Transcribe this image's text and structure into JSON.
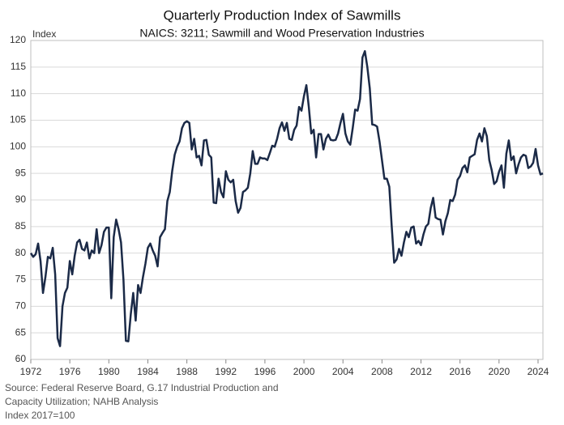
{
  "chart_data": {
    "type": "line",
    "title": "Quarterly Production Index of Sawmills",
    "subtitle": "NAICS: 3211; Sawmill and Wood Preservation Industries",
    "y_axis_label": "Index",
    "notes": [
      "Source: Federal Reserve Board, G.17 Industrial Production and",
      "Capacity Utilization; NAHB Analysis",
      "Index 2017=100"
    ],
    "x": [
      1972,
      1972.25,
      1972.5,
      1972.75,
      1973,
      1973.25,
      1973.5,
      1973.75,
      1974,
      1974.25,
      1974.5,
      1974.75,
      1975,
      1975.25,
      1975.5,
      1975.75,
      1976,
      1976.25,
      1976.5,
      1976.75,
      1977,
      1977.25,
      1977.5,
      1977.75,
      1978,
      1978.25,
      1978.5,
      1978.75,
      1979,
      1979.25,
      1979.5,
      1979.75,
      1980,
      1980.25,
      1980.5,
      1980.75,
      1981,
      1981.25,
      1981.5,
      1981.75,
      1982,
      1982.25,
      1982.5,
      1982.75,
      1983,
      1983.25,
      1983.5,
      1983.75,
      1984,
      1984.25,
      1984.5,
      1984.75,
      1985,
      1985.25,
      1985.5,
      1985.75,
      1986,
      1986.25,
      1986.5,
      1986.75,
      1987,
      1987.25,
      1987.5,
      1987.75,
      1988,
      1988.25,
      1988.5,
      1988.75,
      1989,
      1989.25,
      1989.5,
      1989.75,
      1990,
      1990.25,
      1990.5,
      1990.75,
      1991,
      1991.25,
      1991.5,
      1991.75,
      1992,
      1992.25,
      1992.5,
      1992.75,
      1993,
      1993.25,
      1993.5,
      1993.75,
      1994,
      1994.25,
      1994.5,
      1994.75,
      1995,
      1995.25,
      1995.5,
      1995.75,
      1996,
      1996.25,
      1996.5,
      1996.75,
      1997,
      1997.25,
      1997.5,
      1997.75,
      1998,
      1998.25,
      1998.5,
      1998.75,
      1999,
      1999.25,
      1999.5,
      1999.75,
      2000,
      2000.25,
      2000.5,
      2000.75,
      2001,
      2001.25,
      2001.5,
      2001.75,
      2002,
      2002.25,
      2002.5,
      2002.75,
      2003,
      2003.25,
      2003.5,
      2003.75,
      2004,
      2004.25,
      2004.5,
      2004.75,
      2005,
      2005.25,
      2005.5,
      2005.75,
      2006,
      2006.25,
      2006.5,
      2006.75,
      2007,
      2007.25,
      2007.5,
      2007.75,
      2008,
      2008.25,
      2008.5,
      2008.75,
      2009,
      2009.25,
      2009.5,
      2009.75,
      2010,
      2010.25,
      2010.5,
      2010.75,
      2011,
      2011.25,
      2011.5,
      2011.75,
      2012,
      2012.25,
      2012.5,
      2012.75,
      2013,
      2013.25,
      2013.5,
      2013.75,
      2014,
      2014.25,
      2014.5,
      2014.75,
      2015,
      2015.25,
      2015.5,
      2015.75,
      2016,
      2016.25,
      2016.5,
      2016.75,
      2017,
      2017.25,
      2017.5,
      2017.75,
      2018,
      2018.25,
      2018.5,
      2018.75,
      2019,
      2019.25,
      2019.5,
      2019.75,
      2020,
      2020.25,
      2020.5,
      2020.75,
      2021,
      2021.25,
      2021.5,
      2021.75,
      2022,
      2022.25,
      2022.5,
      2022.75,
      2023,
      2023.25,
      2023.5,
      2023.75,
      2024,
      2024.25,
      2024.5
    ],
    "series": [
      {
        "name": "Index",
        "color": "#1b2a47",
        "values": [
          80,
          79.3,
          79.8,
          81.8,
          78.5,
          72.5,
          75.5,
          79.3,
          79,
          81,
          76,
          64,
          62.5,
          70,
          72.5,
          73.5,
          78.5,
          76,
          79.5,
          82,
          82.5,
          80.8,
          80.5,
          82,
          79,
          80.5,
          80,
          84.5,
          80,
          81.5,
          84,
          84.8,
          84.8,
          71.5,
          83,
          86.3,
          84.5,
          82,
          75,
          63.5,
          63.4,
          68.5,
          72.5,
          67.3,
          74,
          72.5,
          75.5,
          78,
          81,
          81.8,
          80.5,
          79.5,
          77.5,
          83,
          83.8,
          84.5,
          89.8,
          91.5,
          95.5,
          98.5,
          100,
          101,
          103.5,
          104.5,
          104.8,
          104.5,
          99.5,
          101.5,
          98,
          98.3,
          96.5,
          101.2,
          101.3,
          98.5,
          98,
          89.5,
          89.4,
          94,
          91.5,
          90.5,
          95.4,
          93.8,
          93.3,
          93.8,
          89.8,
          87.6,
          88.5,
          91.5,
          91.8,
          92.3,
          95,
          99.2,
          96.8,
          96.8,
          98,
          97.8,
          97.8,
          97.5,
          98.8,
          100.2,
          100,
          101.5,
          103.5,
          104.6,
          103,
          104.5,
          101.5,
          101.3,
          103.2,
          104,
          107.5,
          106.8,
          109.5,
          111.6,
          107.5,
          102.5,
          103.2,
          98,
          102.4,
          102.4,
          99.5,
          101.5,
          102.3,
          101.3,
          101.2,
          101.3,
          102.5,
          104.5,
          106.2,
          102.5,
          101,
          100.4,
          103.5,
          107,
          106.8,
          109,
          116.8,
          118,
          115,
          111,
          104.2,
          104.1,
          103.8,
          101,
          97.5,
          94,
          94,
          92.5,
          85,
          78.2,
          78.8,
          80.8,
          79.5,
          82,
          84,
          83,
          84.8,
          85,
          81.8,
          82.3,
          81.5,
          83.5,
          85,
          85.5,
          88.5,
          90.4,
          86.7,
          86.4,
          86.3,
          83.5,
          86,
          87.5,
          90,
          89.8,
          91,
          93.8,
          94.5,
          96,
          96.5,
          95.2,
          98,
          98.3,
          98.6,
          101.3,
          102.5,
          101,
          103.5,
          102,
          97.5,
          95.6,
          93,
          93.5,
          95.3,
          96.5,
          92.3,
          98.7,
          101.2,
          97.5,
          98.2,
          95,
          96.7,
          98,
          98.5,
          98.3,
          96,
          96.3,
          97,
          99.6,
          96.5,
          94.8,
          95
        ]
      }
    ],
    "xlim": [
      1972,
      2024.5
    ],
    "xticks": [
      1972,
      1976,
      1980,
      1984,
      1988,
      1992,
      1996,
      2000,
      2004,
      2008,
      2012,
      2016,
      2020,
      2024
    ],
    "ylim": [
      60,
      120
    ],
    "yticks": [
      60,
      65,
      70,
      75,
      80,
      85,
      90,
      95,
      100,
      105,
      110,
      115,
      120
    ],
    "grid": true
  }
}
